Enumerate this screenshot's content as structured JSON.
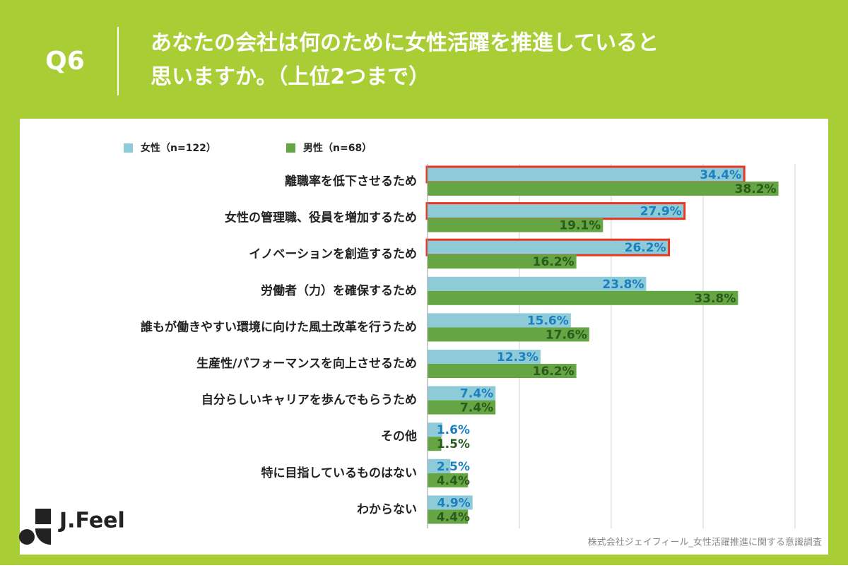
{
  "header": {
    "label": "Q6",
    "title_lines": [
      "あなたの会社は何のために女性活躍を推進していると",
      "思いますか。（上位2つまで）"
    ]
  },
  "chart_data": {
    "type": "hbar",
    "categories": [
      "離職率を低下させるため",
      "女性の管理職、役員を増加するため",
      "イノベーションを創造するため",
      "労働者（力）を確保するため",
      "誰もが働きやすい環境に向けた風土改革を行うため",
      "生産性/パフォーマンスを向上させるため",
      "自分らしいキャリアを歩んでもらうため",
      "その他",
      "特に目指しているものはない",
      "わからない"
    ],
    "series": [
      {
        "name": "女性（n=122）",
        "color": "#8ecbd8",
        "label_color": "#1b7fc0",
        "values": [
          34.4,
          27.9,
          26.2,
          23.8,
          15.6,
          12.3,
          7.4,
          1.6,
          2.5,
          4.9
        ],
        "value_labels": [
          "34.4%",
          "27.9%",
          "26.2%",
          "23.8%",
          "15.6%",
          "12.3%",
          "7.4%",
          "1.6%",
          "2.5%",
          "4.9%"
        ],
        "outline_color": "#e8361f",
        "outlined": [
          true,
          true,
          true,
          false,
          false,
          false,
          false,
          false,
          false,
          false
        ]
      },
      {
        "name": "男性（n=68）",
        "color": "#66a543",
        "label_color": "#2b5a1c",
        "values": [
          38.2,
          19.1,
          16.2,
          33.8,
          17.6,
          16.2,
          7.4,
          1.5,
          4.4,
          4.4
        ],
        "value_labels": [
          "38.2%",
          "19.1%",
          "16.2%",
          "33.8%",
          "17.6%",
          "16.2%",
          "7.4%",
          "1.5%",
          "4.4%",
          "4.4%"
        ]
      }
    ],
    "xlim": [
      0,
      40
    ],
    "xticks": [
      0,
      10,
      20,
      30,
      40
    ],
    "grid": true
  },
  "footer": {
    "logo": "J.Feel",
    "source": "株式会社ジェイフィール_女性活躍推進に関する意識調査"
  }
}
